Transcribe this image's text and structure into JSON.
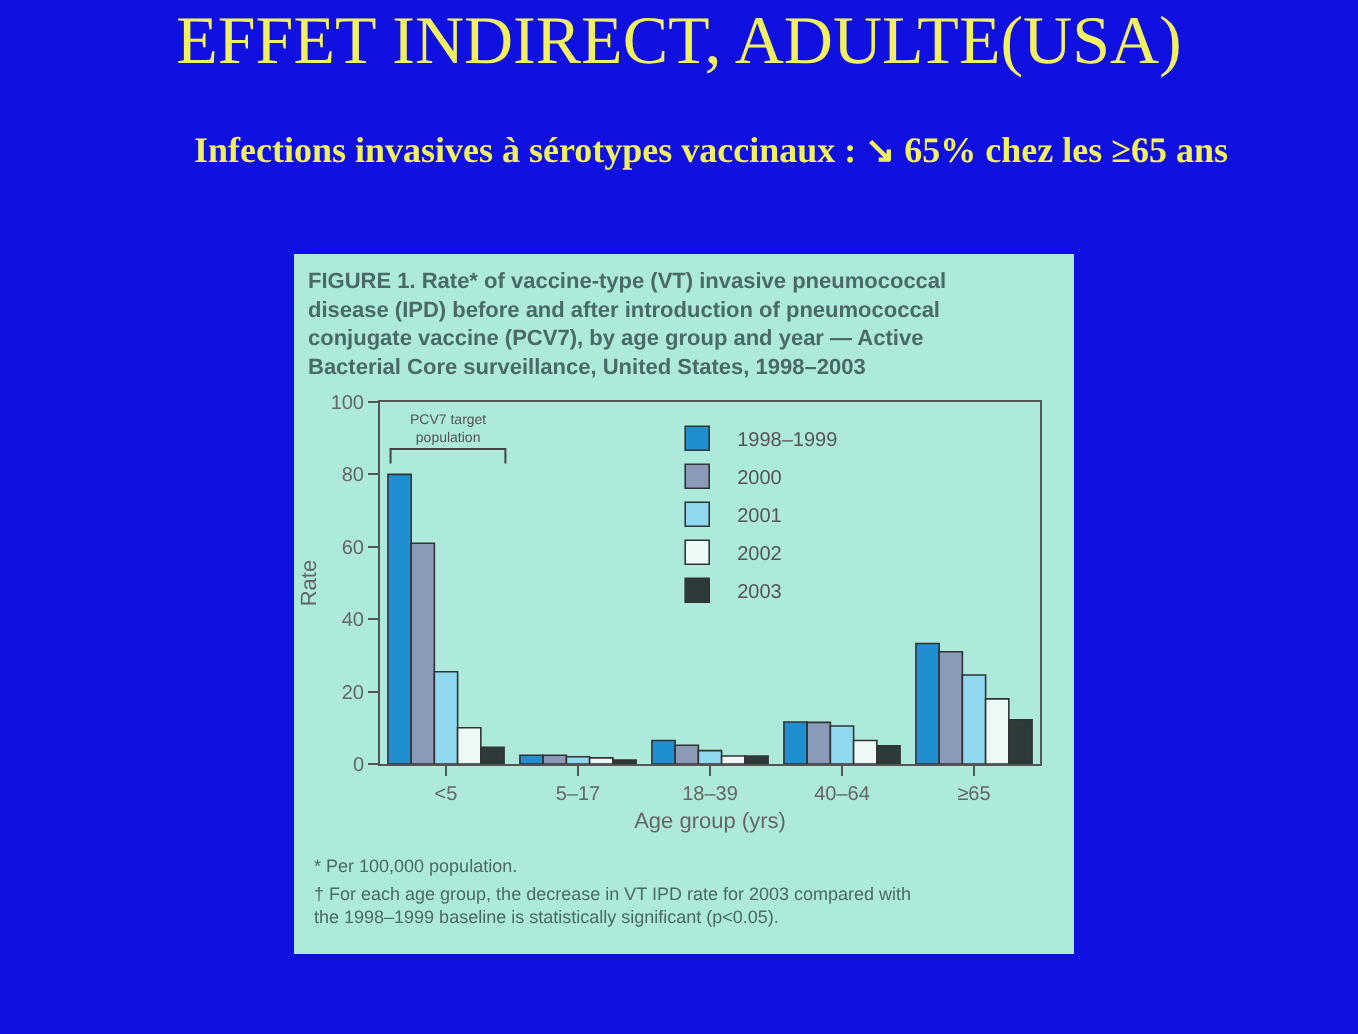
{
  "chart_data": {
    "type": "bar",
    "title": "EFFET INDIRECT, ADULTE(USA)",
    "subtitle": "Infections invasives à sérotypes vaccinaux : ↘ 65% chez les ≥65 ans",
    "xlabel": "Age group (yrs)",
    "ylabel": "Rate",
    "categories": [
      "<5",
      "5–17",
      "18–39",
      "40–64",
      "≥65"
    ],
    "series": [
      {
        "name": "1998–1999",
        "color": "#1f8fd0",
        "values": [
          80,
          2.4,
          6.5,
          11.6,
          33.3
        ]
      },
      {
        "name": "2000",
        "color": "#8a9ab8",
        "values": [
          61,
          2.4,
          5.2,
          11.5,
          31
        ]
      },
      {
        "name": "2001",
        "color": "#8fd8ef",
        "values": [
          25.5,
          2,
          3.7,
          10.5,
          24.6
        ]
      },
      {
        "name": "2002",
        "color": "#eefaf6",
        "values": [
          10,
          1.7,
          2.2,
          6.5,
          18
        ]
      },
      {
        "name": "2003",
        "color": "#2d3a3a",
        "values": [
          4.6,
          1.1,
          2.2,
          5,
          12.2
        ]
      }
    ],
    "ylim": [
      0,
      100
    ],
    "yticks": [
      0,
      20,
      40,
      60,
      80,
      100
    ],
    "grid": false,
    "legend": "top",
    "annotations": [
      "FIGURE 1. Rate* of vaccine-type (VT) invasive pneumococcal disease (IPD) before and after introduction of pneumococcal conjugate vaccine (PCV7), by age group and year — Active Bacterial Core surveillance, United States, 1998–2003",
      "PCV7 target population",
      "* Per 100,000 population.",
      "† For each age group, the decrease in VT IPD rate for 2003 compared with the 1998–1999 baseline is statistically significant (p<0.05)."
    ]
  }
}
